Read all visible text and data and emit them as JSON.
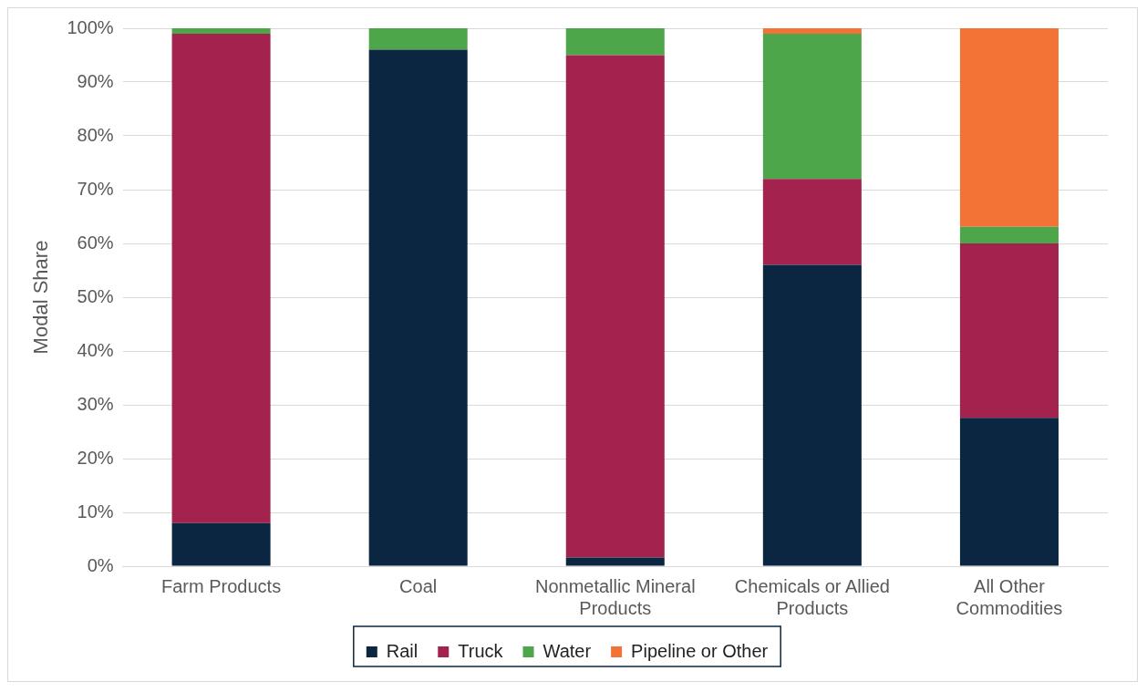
{
  "chart_data": {
    "type": "bar",
    "stacked": true,
    "ylabel": "Modal Share",
    "categories": [
      "Farm Products",
      "Coal",
      "Nonmetallic Mineral Products",
      "Chemicals or Allied Products",
      "All Other Commodities"
    ],
    "series": [
      {
        "name": "Rail",
        "color": "#0b2640",
        "values": [
          8,
          96,
          1.6,
          56,
          27.6
        ]
      },
      {
        "name": "Truck",
        "color": "#a4234e",
        "values": [
          91,
          0,
          93.4,
          16,
          32.4
        ]
      },
      {
        "name": "Water",
        "color": "#4ea64a",
        "values": [
          1,
          4,
          5,
          27,
          3.1
        ]
      },
      {
        "name": "Pipeline or Other",
        "color": "#f37336",
        "values": [
          0,
          0,
          0,
          1,
          36.9
        ]
      }
    ],
    "ylim": [
      0,
      100
    ],
    "yticks": [
      {
        "value": 0,
        "label": "0%"
      },
      {
        "value": 10,
        "label": "10%"
      },
      {
        "value": 20,
        "label": "20%"
      },
      {
        "value": 30,
        "label": "30%"
      },
      {
        "value": 40,
        "label": "40%"
      },
      {
        "value": 50,
        "label": "50%"
      },
      {
        "value": 60,
        "label": "60%"
      },
      {
        "value": 70,
        "label": "70%"
      },
      {
        "value": 80,
        "label": "80%"
      },
      {
        "value": 90,
        "label": "90%"
      },
      {
        "value": 100,
        "label": "100%"
      }
    ],
    "grid": "y",
    "legend": "bottom"
  }
}
